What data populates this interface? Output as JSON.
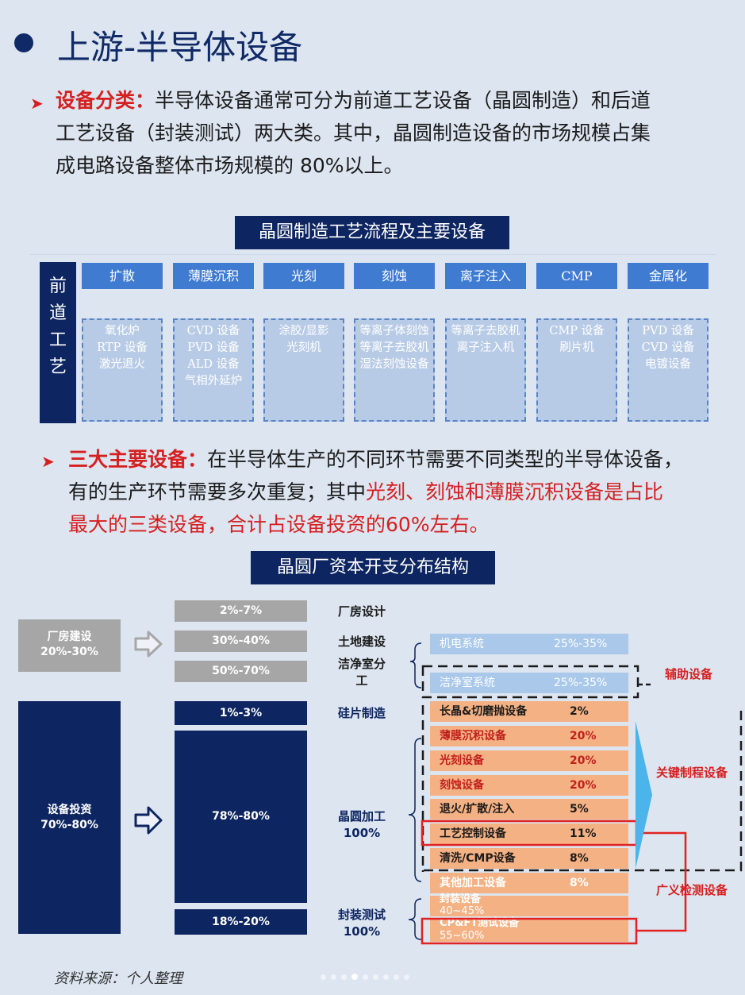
{
  "header": {
    "title": "上游-半导体设备"
  },
  "section1": {
    "label": "设备分类：",
    "lines": [
      "半导体设备通常可分为前道工艺设备（晶圆制造）和后道",
      "工艺设备（封装测试）两大类。其中，晶圆制造设备的市场规模占集",
      "成电路设备整体市场规模的 80%以上。"
    ]
  },
  "diagram1": {
    "banner": "晶圆制造工艺流程及主要设备",
    "side_label": [
      "前",
      "道",
      "工",
      "艺"
    ],
    "processes": [
      {
        "name": "扩散",
        "equipment": [
          "氧化炉",
          "RTP 设备",
          "激光退火"
        ]
      },
      {
        "name": "薄膜沉积",
        "equipment": [
          "CVD 设备",
          "PVD 设备",
          "ALD 设备",
          "气相外延炉"
        ]
      },
      {
        "name": "光刻",
        "equipment": [
          "涂胶/显影",
          "光刻机"
        ]
      },
      {
        "name": "刻蚀",
        "equipment": [
          "等离子体刻蚀",
          "等离子去胶机",
          "湿法刻蚀设备"
        ]
      },
      {
        "name": "离子注入",
        "equipment": [
          "等离子去胶机",
          "离子注入机"
        ]
      },
      {
        "name": "CMP",
        "equipment": [
          "CMP 设备",
          "刷片机"
        ]
      },
      {
        "name": "金属化",
        "equipment": [
          "PVD 设备",
          "CVD 设备",
          "电镀设备"
        ]
      }
    ]
  },
  "section2": {
    "label": "三大主要设备：",
    "line1": "在半导体生产的不同环节需要不同类型的半导体设备，",
    "line2_black": "有的生产环节需要多次重复；其中",
    "line2_red": "光刻、刻蚀和薄膜沉积设备是占比",
    "line3_red": "最大的三类设备，合计占设备投资的60%左右。"
  },
  "diagram2": {
    "banner": "晶圆厂资本开支分布结构",
    "left_blocks": [
      {
        "name": "厂房建设",
        "range": "20%-30%"
      },
      {
        "name": "设备投资",
        "range": "70%-80%"
      }
    ],
    "middle_bars": {
      "factory": [
        "2%-7%",
        "30%-40%",
        "50%-70%"
      ],
      "equipment": [
        "1%-3%",
        "78%-80%",
        "18%-20%"
      ]
    },
    "categories": {
      "design": "厂房设计",
      "land": "土地建设",
      "cleanroom": [
        "洁净室分",
        "工"
      ],
      "wafer_making": "硅片制造",
      "wafer_processing": [
        "晶圆加工",
        "100%"
      ],
      "packaging": [
        "封装测试",
        "100%"
      ]
    },
    "facility_rows": [
      {
        "name": "机电系统",
        "value": "25%-35%"
      },
      {
        "name": "洁净室系统",
        "value": "25%-35%"
      }
    ],
    "equipment_rows": [
      {
        "name": "长晶&切磨抛设备",
        "value": "2%"
      },
      {
        "name": "薄膜沉积设备",
        "value": "20%",
        "highlight": true
      },
      {
        "name": "光刻设备",
        "value": "20%",
        "highlight": true
      },
      {
        "name": "刻蚀设备",
        "value": "20%",
        "highlight": true
      },
      {
        "name": "退火/扩散/注入",
        "value": "5%"
      },
      {
        "name": "工艺控制设备",
        "value": "11%"
      },
      {
        "name": "清洗/CMP设备",
        "value": "8%"
      },
      {
        "name": "其他加工设备",
        "value": "8%"
      }
    ],
    "packaging_rows": [
      {
        "name": "封装设备",
        "value": "40~45%"
      },
      {
        "name": "CP&FT测试设备",
        "value": "55~60%"
      }
    ],
    "side_labels": {
      "auxiliary": "辅助设备",
      "key_process": "关键制程设备",
      "inspection": "广义检测设备"
    },
    "colors": {
      "navy": "#0d2560",
      "gray": "#a6a6a6",
      "orange": "#f4b183",
      "lightblue": "#a9c8ea",
      "red": "#d62020"
    }
  },
  "footer": {
    "source": "资料来源：个人整理"
  }
}
